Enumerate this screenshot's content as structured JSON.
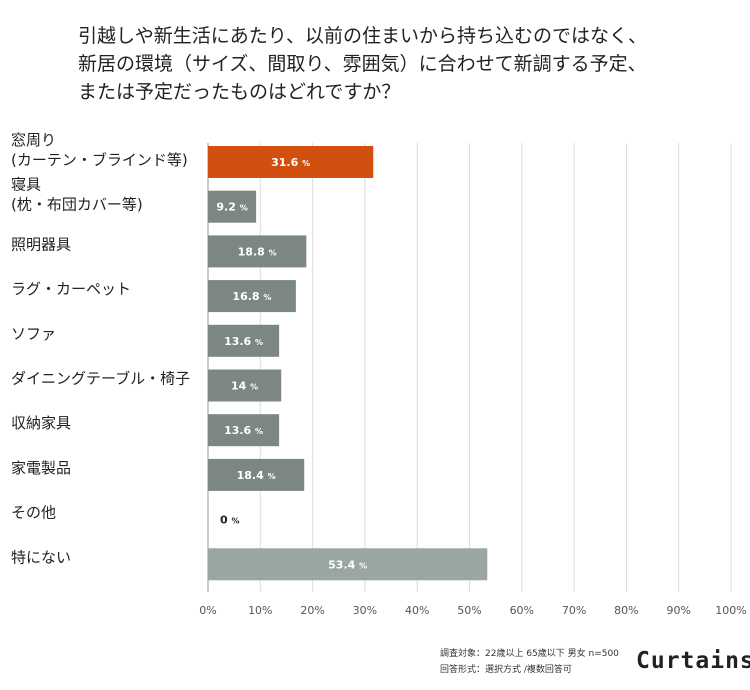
{
  "chart_data": {
    "type": "bar",
    "orientation": "horizontal",
    "title_lines": [
      "引越しや新生活にあたり、以前の住まいから持ち込むのではなく、",
      "新居の環境（サイズ、間取り、雰囲気）に合わせて新調する予定、",
      "または予定だったものはどれですか？"
    ],
    "categories": [
      [
        "窓周り",
        "(カーテン・ブラインド等)"
      ],
      [
        "寝具",
        "(枕・布団カバー等)"
      ],
      [
        "照明器具"
      ],
      [
        "ラグ・カーペット"
      ],
      [
        "ソファ"
      ],
      [
        "ダイニングテーブル・椅子"
      ],
      [
        "収納家具"
      ],
      [
        "家電製品"
      ],
      [
        "その他"
      ],
      [
        "特にない"
      ]
    ],
    "values": [
      31.6,
      9.2,
      18.8,
      16.8,
      13.6,
      14,
      13.6,
      18.4,
      0,
      53.4
    ],
    "value_labels": [
      "31.6",
      "9.2",
      "18.8",
      "16.8",
      "13.6",
      "14",
      "13.6",
      "18.4",
      "0",
      "53.4"
    ],
    "value_unit": "%",
    "xlim": [
      0,
      100
    ],
    "xticks": [
      "0%",
      "10%",
      "20%",
      "30%",
      "40%",
      "50%",
      "60%",
      "70%",
      "80%",
      "90%",
      "100%"
    ],
    "grid": true,
    "bar_colors": [
      "#d2500f",
      "#7c8785",
      "#7c8785",
      "#7c8785",
      "#7c8785",
      "#7c8785",
      "#7c8785",
      "#7c8785",
      "#7c8785",
      "#9aa6a4"
    ]
  },
  "footer": {
    "note_line1": "調査対象：22歳以上 65歳以下 男女 n=500",
    "note_line2": "回答形式：選択方式 /複数回答可",
    "logo": "Curtains"
  }
}
